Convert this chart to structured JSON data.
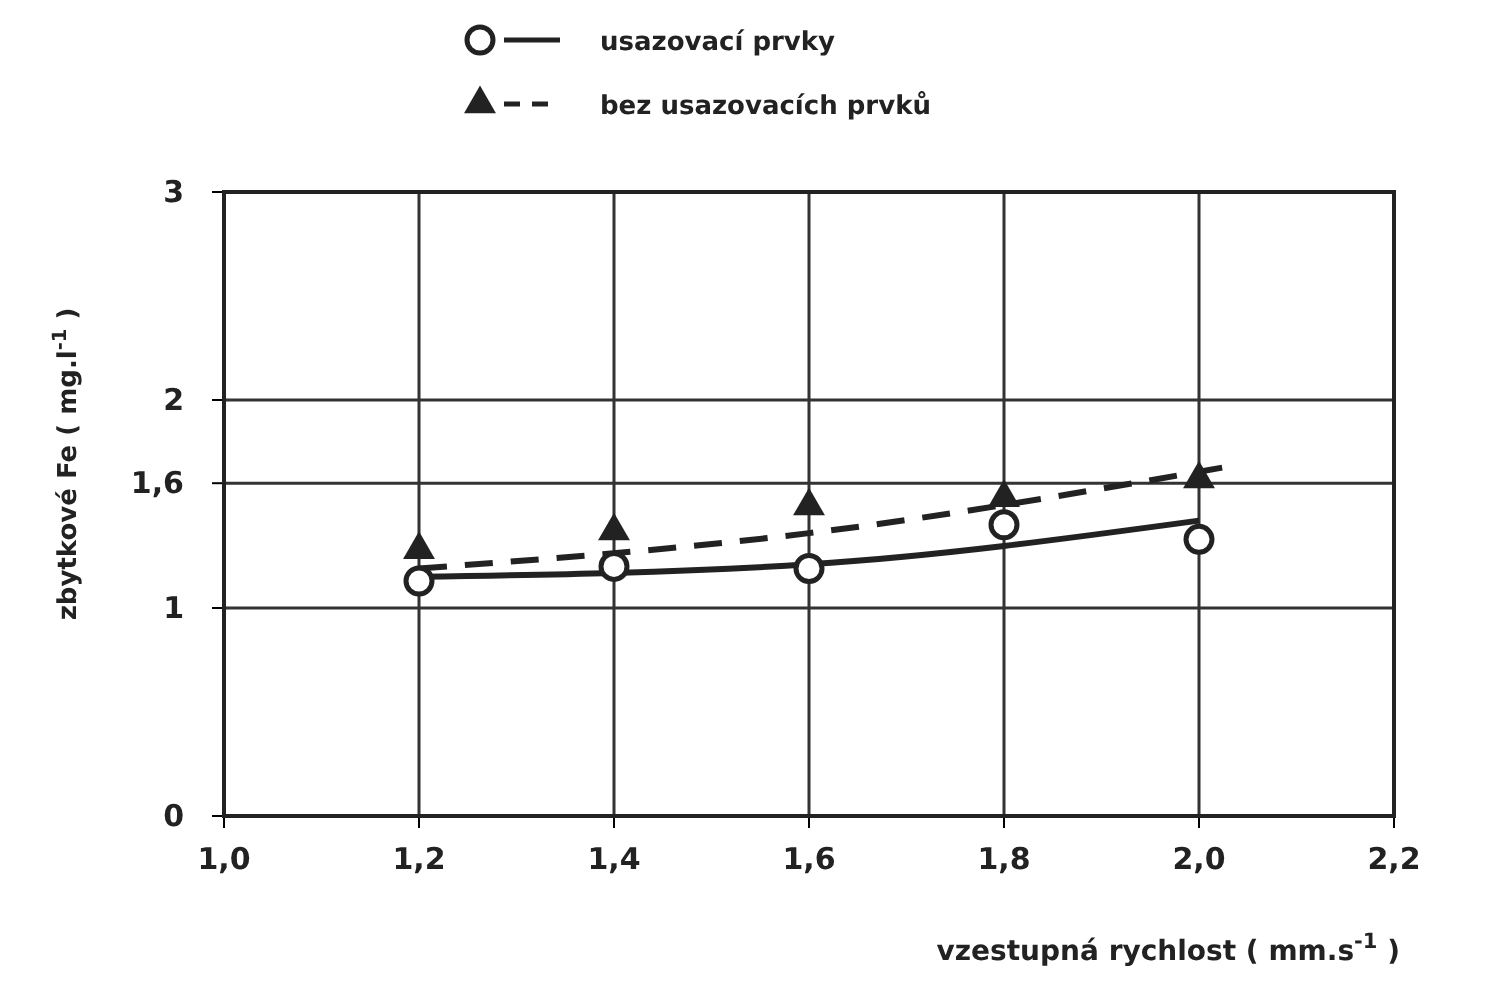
{
  "chart_data": {
    "type": "scatter",
    "xlabel": "vzestupná rychlost ( mm.s$^{-1}$ )",
    "ylabel": "zbytkové Fe ( mg.l$^{-1}$ )",
    "xlim": [
      1.0,
      2.2
    ],
    "xticks": [
      {
        "value": 1.0,
        "label": "1,0"
      },
      {
        "value": 1.2,
        "label": "1,2"
      },
      {
        "value": 1.4,
        "label": "1,4"
      },
      {
        "value": 1.6,
        "label": "1,6"
      },
      {
        "value": 1.8,
        "label": "1,8"
      },
      {
        "value": 2.0,
        "label": "2,0"
      },
      {
        "value": 2.2,
        "label": "2,2"
      }
    ],
    "ylim": [
      0,
      3
    ],
    "yticks": [
      0,
      1,
      {
        "value": 1.6,
        "label": "1,6"
      },
      2,
      3
    ],
    "grid": true,
    "legend": "top",
    "series": [
      {
        "name": "usazovací prvky",
        "color": "#222222",
        "marker": "circle",
        "line_style": "solid",
        "x": [
          1.2,
          1.4,
          1.6,
          1.8,
          2.0
        ],
        "values": [
          1.13,
          1.2,
          1.19,
          1.4,
          1.33
        ]
      },
      {
        "name": "bez usazovacích prvků",
        "color": "#222222",
        "marker": "triangle",
        "line_style": "dashed",
        "x": [
          1.2,
          1.4,
          1.6,
          1.8,
          2.0
        ],
        "values": [
          1.28,
          1.37,
          1.49,
          1.53,
          1.62
        ]
      },
      {
        "type": "line",
        "color": "#222222",
        "marker": "none",
        "line_style": "solid",
        "x": [
          1.2,
          1.6,
          2.0
        ],
        "values": [
          1.15,
          1.21,
          1.42
        ]
      },
      {
        "type": "line",
        "color": "#222222",
        "marker": "none",
        "line_style": "dashed",
        "x": [
          1.2,
          1.6,
          2.03
        ],
        "values": [
          1.19,
          1.36,
          1.68
        ]
      }
    ]
  }
}
